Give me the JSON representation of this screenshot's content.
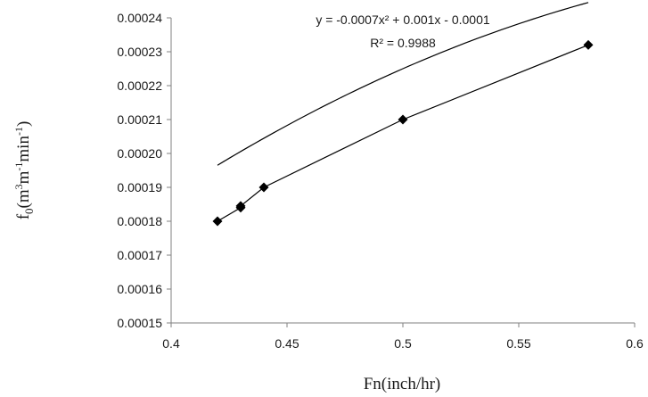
{
  "chart_data": {
    "type": "scatter",
    "xlabel": "Fn(inch/hr)",
    "ylabel_parts": {
      "base": "f",
      "sub": "0",
      "open": "(m",
      "sup1": "3",
      "mid": "m",
      "sup2": "-1",
      "mid2": "min",
      "sup3": "-1",
      "close": ")"
    },
    "xlim": [
      0.4,
      0.6
    ],
    "ylim": [
      0.00015,
      0.00024
    ],
    "x_ticks": [
      "0.4",
      "0.45",
      "0.5",
      "0.55",
      "0.6"
    ],
    "y_ticks": [
      "0.00015",
      "0.00016",
      "0.00017",
      "0.00018",
      "0.00019",
      "0.00020",
      "0.00021",
      "0.00022",
      "0.00023",
      "0.00024"
    ],
    "series": [
      {
        "points": [
          {
            "x": 0.42,
            "y": 0.00018
          },
          {
            "x": 0.43,
            "y": 0.000184
          },
          {
            "x": 0.43,
            "y": 0.0001845
          },
          {
            "x": 0.44,
            "y": 0.00019
          },
          {
            "x": 0.5,
            "y": 0.00021
          },
          {
            "x": 0.58,
            "y": 0.000232
          }
        ],
        "marker": "diamond",
        "color": "#000000"
      }
    ],
    "trendline": {
      "type": "polynomial",
      "coefficients": {
        "a": -0.0007,
        "b": 0.001,
        "c": -0.0001
      },
      "equation": "y = -0.0007x² + 0.001x - 0.0001",
      "r_squared": "R² = 0.9988"
    },
    "grid": false
  }
}
